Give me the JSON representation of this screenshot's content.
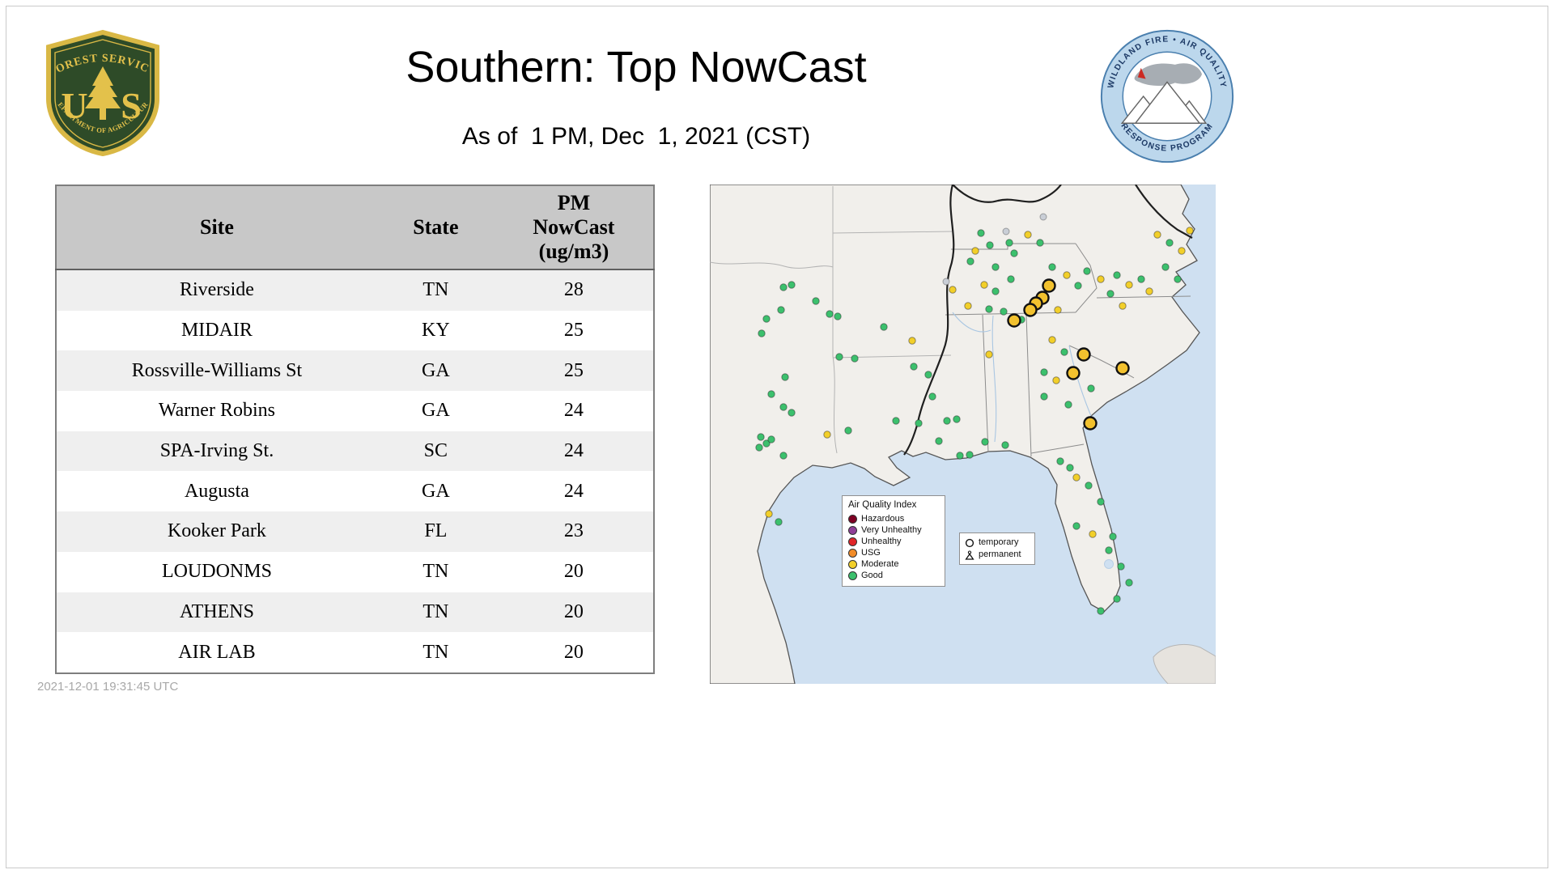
{
  "header": {
    "title": "Southern: Top NowCast",
    "subtitle": "As of  1 PM, Dec  1, 2021 (CST)",
    "usfs_logo": {
      "arc_top": "FOREST SERVICE",
      "letter_left": "U",
      "letter_right": "S",
      "arc_bottom": "DEPARTMENT OF AGRICULTURE"
    },
    "wfaqrp_logo": {
      "arc_top": "WILDLAND FIRE • AIR QUALITY",
      "arc_bottom": "RESPONSE PROGRAM"
    }
  },
  "table": {
    "columns": [
      "Site",
      "State",
      "PM NowCast (ug/m3)"
    ],
    "rows": [
      [
        "Riverside",
        "TN",
        "28"
      ],
      [
        "MIDAIR",
        "KY",
        "25"
      ],
      [
        "Rossville-Williams St",
        "GA",
        "25"
      ],
      [
        "Warner Robins",
        "GA",
        "24"
      ],
      [
        "SPA-Irving St.",
        "SC",
        "24"
      ],
      [
        "Augusta",
        "GA",
        "24"
      ],
      [
        "Kooker Park",
        "FL",
        "23"
      ],
      [
        "LOUDONMS",
        "TN",
        "20"
      ],
      [
        "ATHENS",
        "TN",
        "20"
      ],
      [
        "AIR LAB",
        "TN",
        "20"
      ]
    ]
  },
  "footer": {
    "timestamp": "2021-12-01 19:31:45 UTC"
  },
  "map": {
    "legend": {
      "title": "Air Quality Index",
      "items": [
        {
          "label": "Hazardous",
          "color": "#7e0023"
        },
        {
          "label": "Very Unhealthy",
          "color": "#8f3f97"
        },
        {
          "label": "Unhealthy",
          "color": "#e02528"
        },
        {
          "label": "USG",
          "color": "#f28c28"
        },
        {
          "label": "Moderate",
          "color": "#f2cf2a"
        },
        {
          "label": "Good",
          "color": "#3cc06d"
        }
      ]
    },
    "marker_legend": {
      "temporary": "temporary",
      "permanent": "permanent"
    },
    "colors": {
      "good": "#3cc06d",
      "moderate": "#f2cf2a",
      "other": "#c9ced6",
      "temporary_fill": "#f2c12e",
      "ocean": "#cfe0f1",
      "land": "#f1efeb"
    },
    "points": {
      "good": [
        [
          91,
          127
        ],
        [
          101,
          124
        ],
        [
          88,
          155
        ],
        [
          131,
          144
        ],
        [
          158,
          163
        ],
        [
          70,
          166
        ],
        [
          64,
          184
        ],
        [
          148,
          160
        ],
        [
          179,
          215
        ],
        [
          160,
          213
        ],
        [
          93,
          238
        ],
        [
          76,
          259
        ],
        [
          91,
          275
        ],
        [
          101,
          282
        ],
        [
          63,
          312
        ],
        [
          70,
          320
        ],
        [
          76,
          315
        ],
        [
          61,
          325
        ],
        [
          91,
          335
        ],
        [
          171,
          304
        ],
        [
          85,
          417
        ],
        [
          215,
          176
        ],
        [
          252,
          225
        ],
        [
          270,
          235
        ],
        [
          275,
          262
        ],
        [
          230,
          292
        ],
        [
          258,
          295
        ],
        [
          293,
          292
        ],
        [
          305,
          290
        ],
        [
          283,
          317
        ],
        [
          309,
          335
        ],
        [
          321,
          334
        ],
        [
          335,
          60
        ],
        [
          346,
          75
        ],
        [
          370,
          72
        ],
        [
          376,
          85
        ],
        [
          408,
          72
        ],
        [
          322,
          95
        ],
        [
          353,
          102
        ],
        [
          372,
          117
        ],
        [
          353,
          132
        ],
        [
          345,
          154
        ],
        [
          363,
          157
        ],
        [
          385,
          167
        ],
        [
          423,
          102
        ],
        [
          455,
          125
        ],
        [
          466,
          107
        ],
        [
          495,
          135
        ],
        [
          503,
          112
        ],
        [
          533,
          117
        ],
        [
          438,
          207
        ],
        [
          413,
          232
        ],
        [
          413,
          262
        ],
        [
          443,
          272
        ],
        [
          471,
          252
        ],
        [
          340,
          318
        ],
        [
          365,
          322
        ],
        [
          433,
          342
        ],
        [
          445,
          350
        ],
        [
          468,
          372
        ],
        [
          483,
          392
        ],
        [
          453,
          422
        ],
        [
          498,
          435
        ],
        [
          493,
          452
        ],
        [
          508,
          472
        ],
        [
          518,
          492
        ],
        [
          503,
          512
        ],
        [
          483,
          527
        ],
        [
          568,
          72
        ],
        [
          563,
          102
        ],
        [
          578,
          117
        ]
      ],
      "moderate": [
        [
          328,
          82
        ],
        [
          393,
          62
        ],
        [
          300,
          130
        ],
        [
          339,
          124
        ],
        [
          319,
          150
        ],
        [
          250,
          193
        ],
        [
          441,
          112
        ],
        [
          483,
          117
        ],
        [
          518,
          124
        ],
        [
          543,
          132
        ],
        [
          430,
          155
        ],
        [
          510,
          150
        ],
        [
          423,
          192
        ],
        [
          428,
          242
        ],
        [
          345,
          210
        ],
        [
          145,
          309
        ],
        [
          73,
          407
        ],
        [
          453,
          362
        ],
        [
          473,
          432
        ],
        [
          553,
          62
        ],
        [
          583,
          82
        ],
        [
          593,
          57
        ]
      ],
      "other": [
        [
          366,
          58
        ],
        [
          412,
          40
        ],
        [
          292,
          120
        ]
      ],
      "temporary": [
        [
          419,
          125
        ],
        [
          411,
          140
        ],
        [
          403,
          147
        ],
        [
          396,
          155
        ],
        [
          376,
          168
        ],
        [
          462,
          210
        ],
        [
          449,
          233
        ],
        [
          510,
          227
        ],
        [
          470,
          295
        ]
      ]
    }
  }
}
